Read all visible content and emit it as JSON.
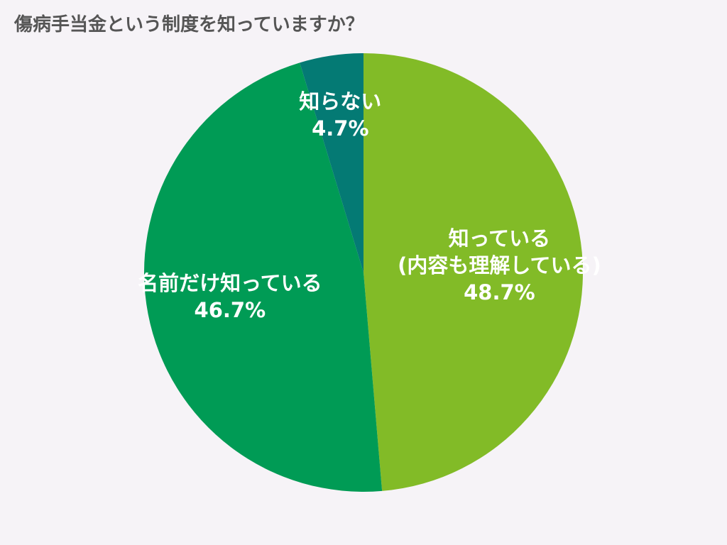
{
  "chart_data": {
    "type": "pie",
    "title": "傷病手当金という制度を知っていますか？",
    "start_angle_deg": 0,
    "direction": "clockwise",
    "slices": [
      {
        "label_lines": [
          "知っている",
          "(内容も理解している)"
        ],
        "value": 48.7,
        "value_label": "48.7%",
        "color": "#82bb27"
      },
      {
        "label_lines": [
          "名前だけ知っている"
        ],
        "value": 46.7,
        "value_label": "46.7%",
        "color": "#009b55"
      },
      {
        "label_lines": [
          "知らない"
        ],
        "value": 4.7,
        "value_label": "4.7%",
        "color": "#047a74"
      }
    ]
  }
}
